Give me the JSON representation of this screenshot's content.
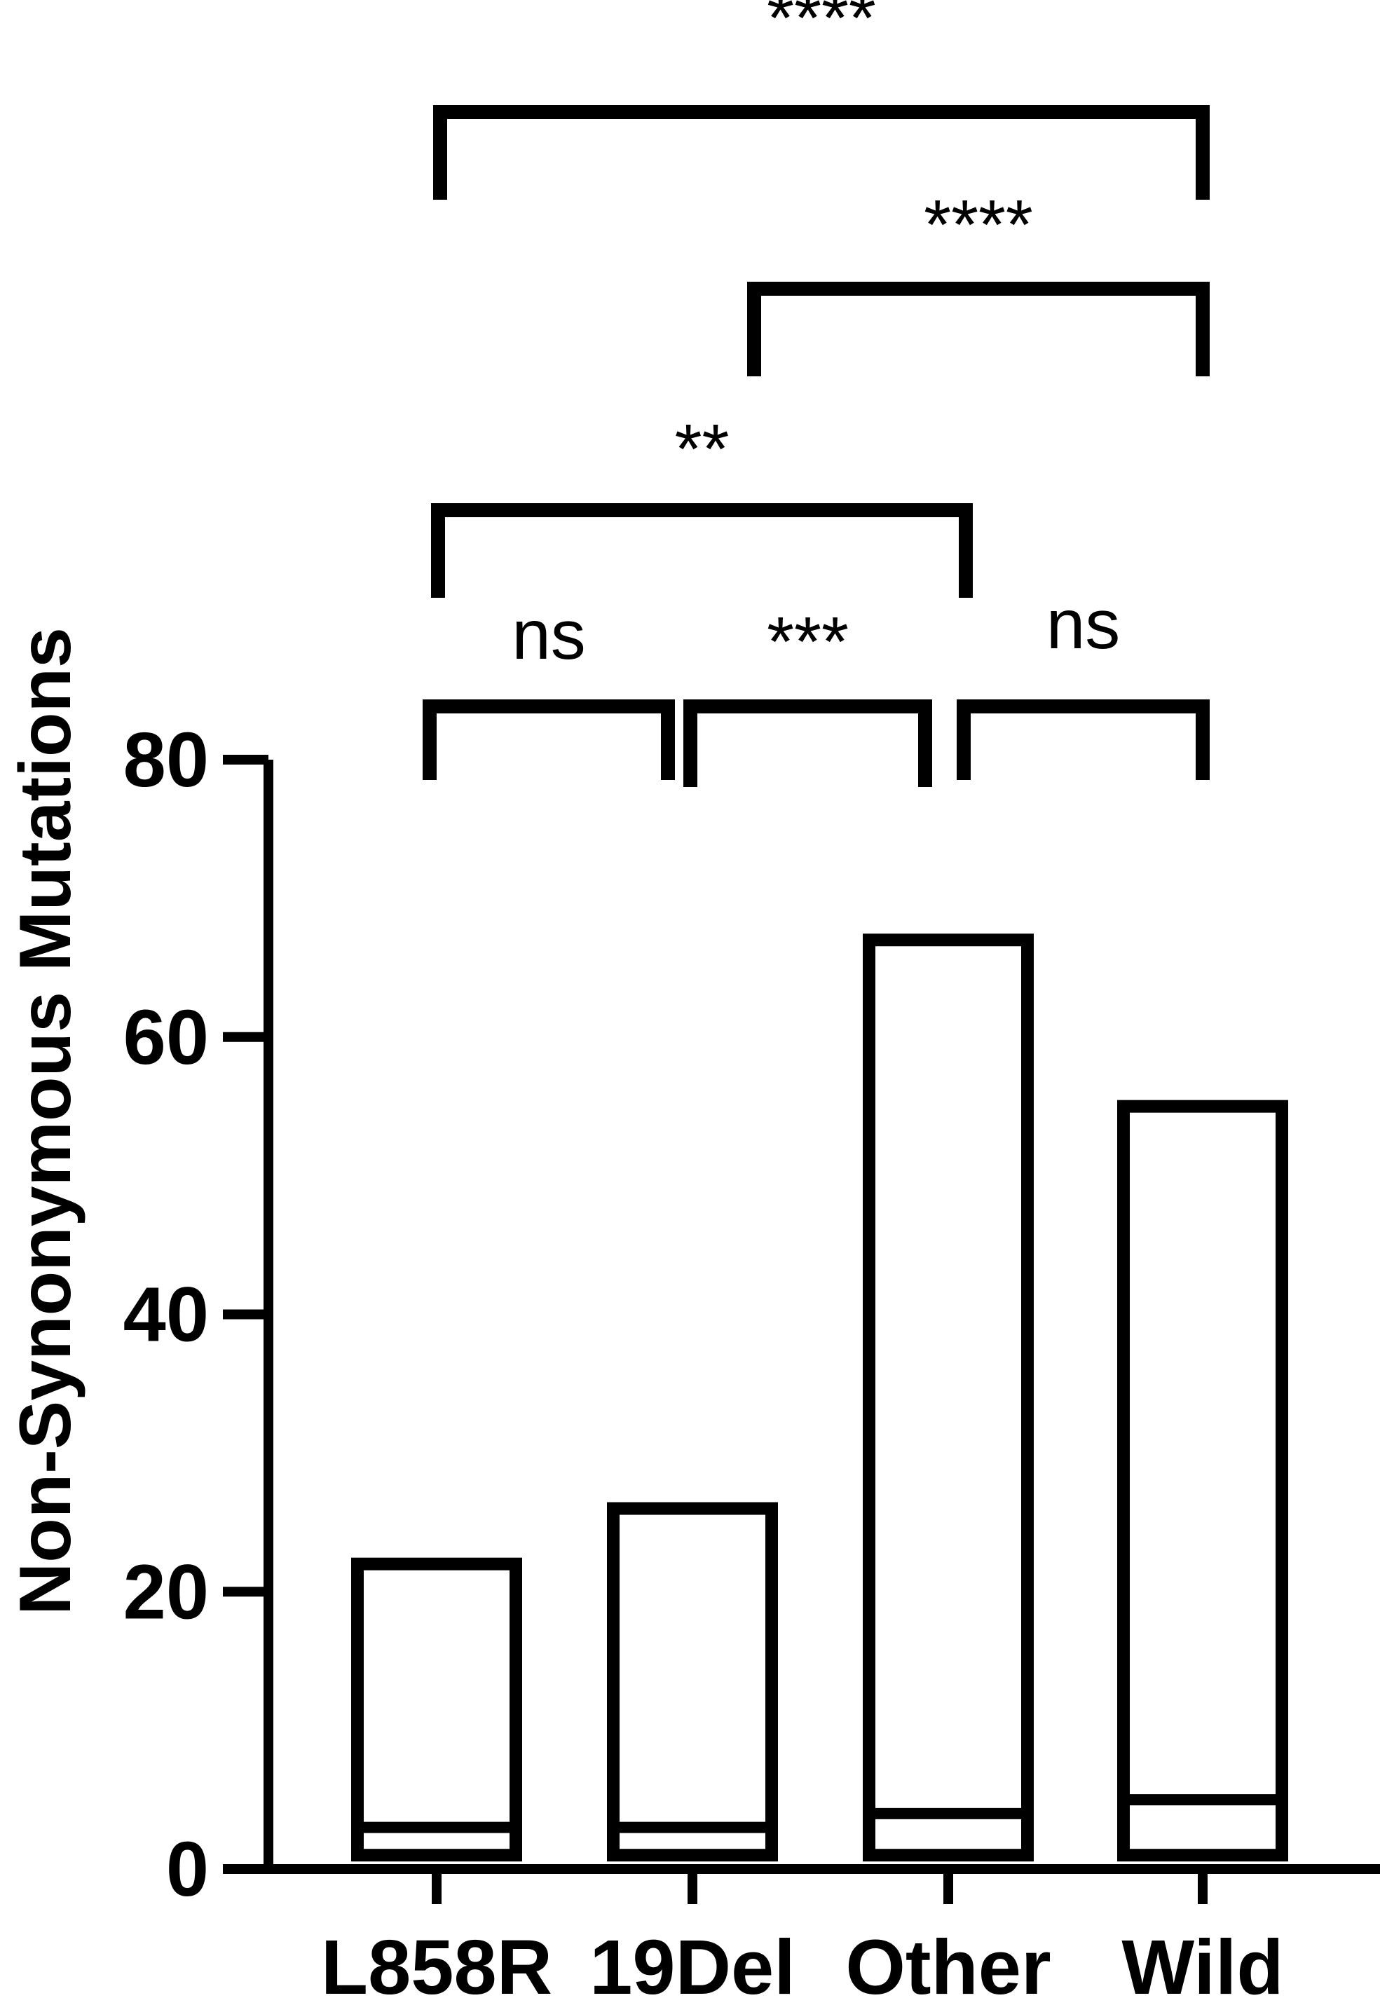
{
  "chart_data": {
    "type": "bar",
    "subtype": "floating-box",
    "ylabel": "Non-Synonymous Mutations",
    "ylim": [
      0,
      80
    ],
    "yticks": [
      0,
      20,
      40,
      60,
      80
    ],
    "ytick_labels": [
      "0",
      "20",
      "40",
      "60",
      "80"
    ],
    "categories": [
      "L858R",
      "19Del",
      "Other",
      "Wild"
    ],
    "series": [
      {
        "min": [
          1,
          1,
          1,
          1
        ],
        "median": [
          3,
          3,
          4,
          5
        ],
        "max": [
          22,
          26,
          67,
          55
        ]
      }
    ],
    "significance": [
      {
        "from": 0,
        "to": 3,
        "label": "****"
      },
      {
        "from": 1,
        "to": 3,
        "label": "****"
      },
      {
        "from": 0,
        "to": 2,
        "label": "**"
      },
      {
        "from": 0,
        "to": 1,
        "label": "ns"
      },
      {
        "from": 1,
        "to": 2,
        "label": "***"
      },
      {
        "from": 2,
        "to": 3,
        "label": "ns"
      }
    ],
    "grid": false,
    "legend": "none",
    "colors": {
      "stroke": "#000000",
      "fill": "#ffffff"
    }
  }
}
